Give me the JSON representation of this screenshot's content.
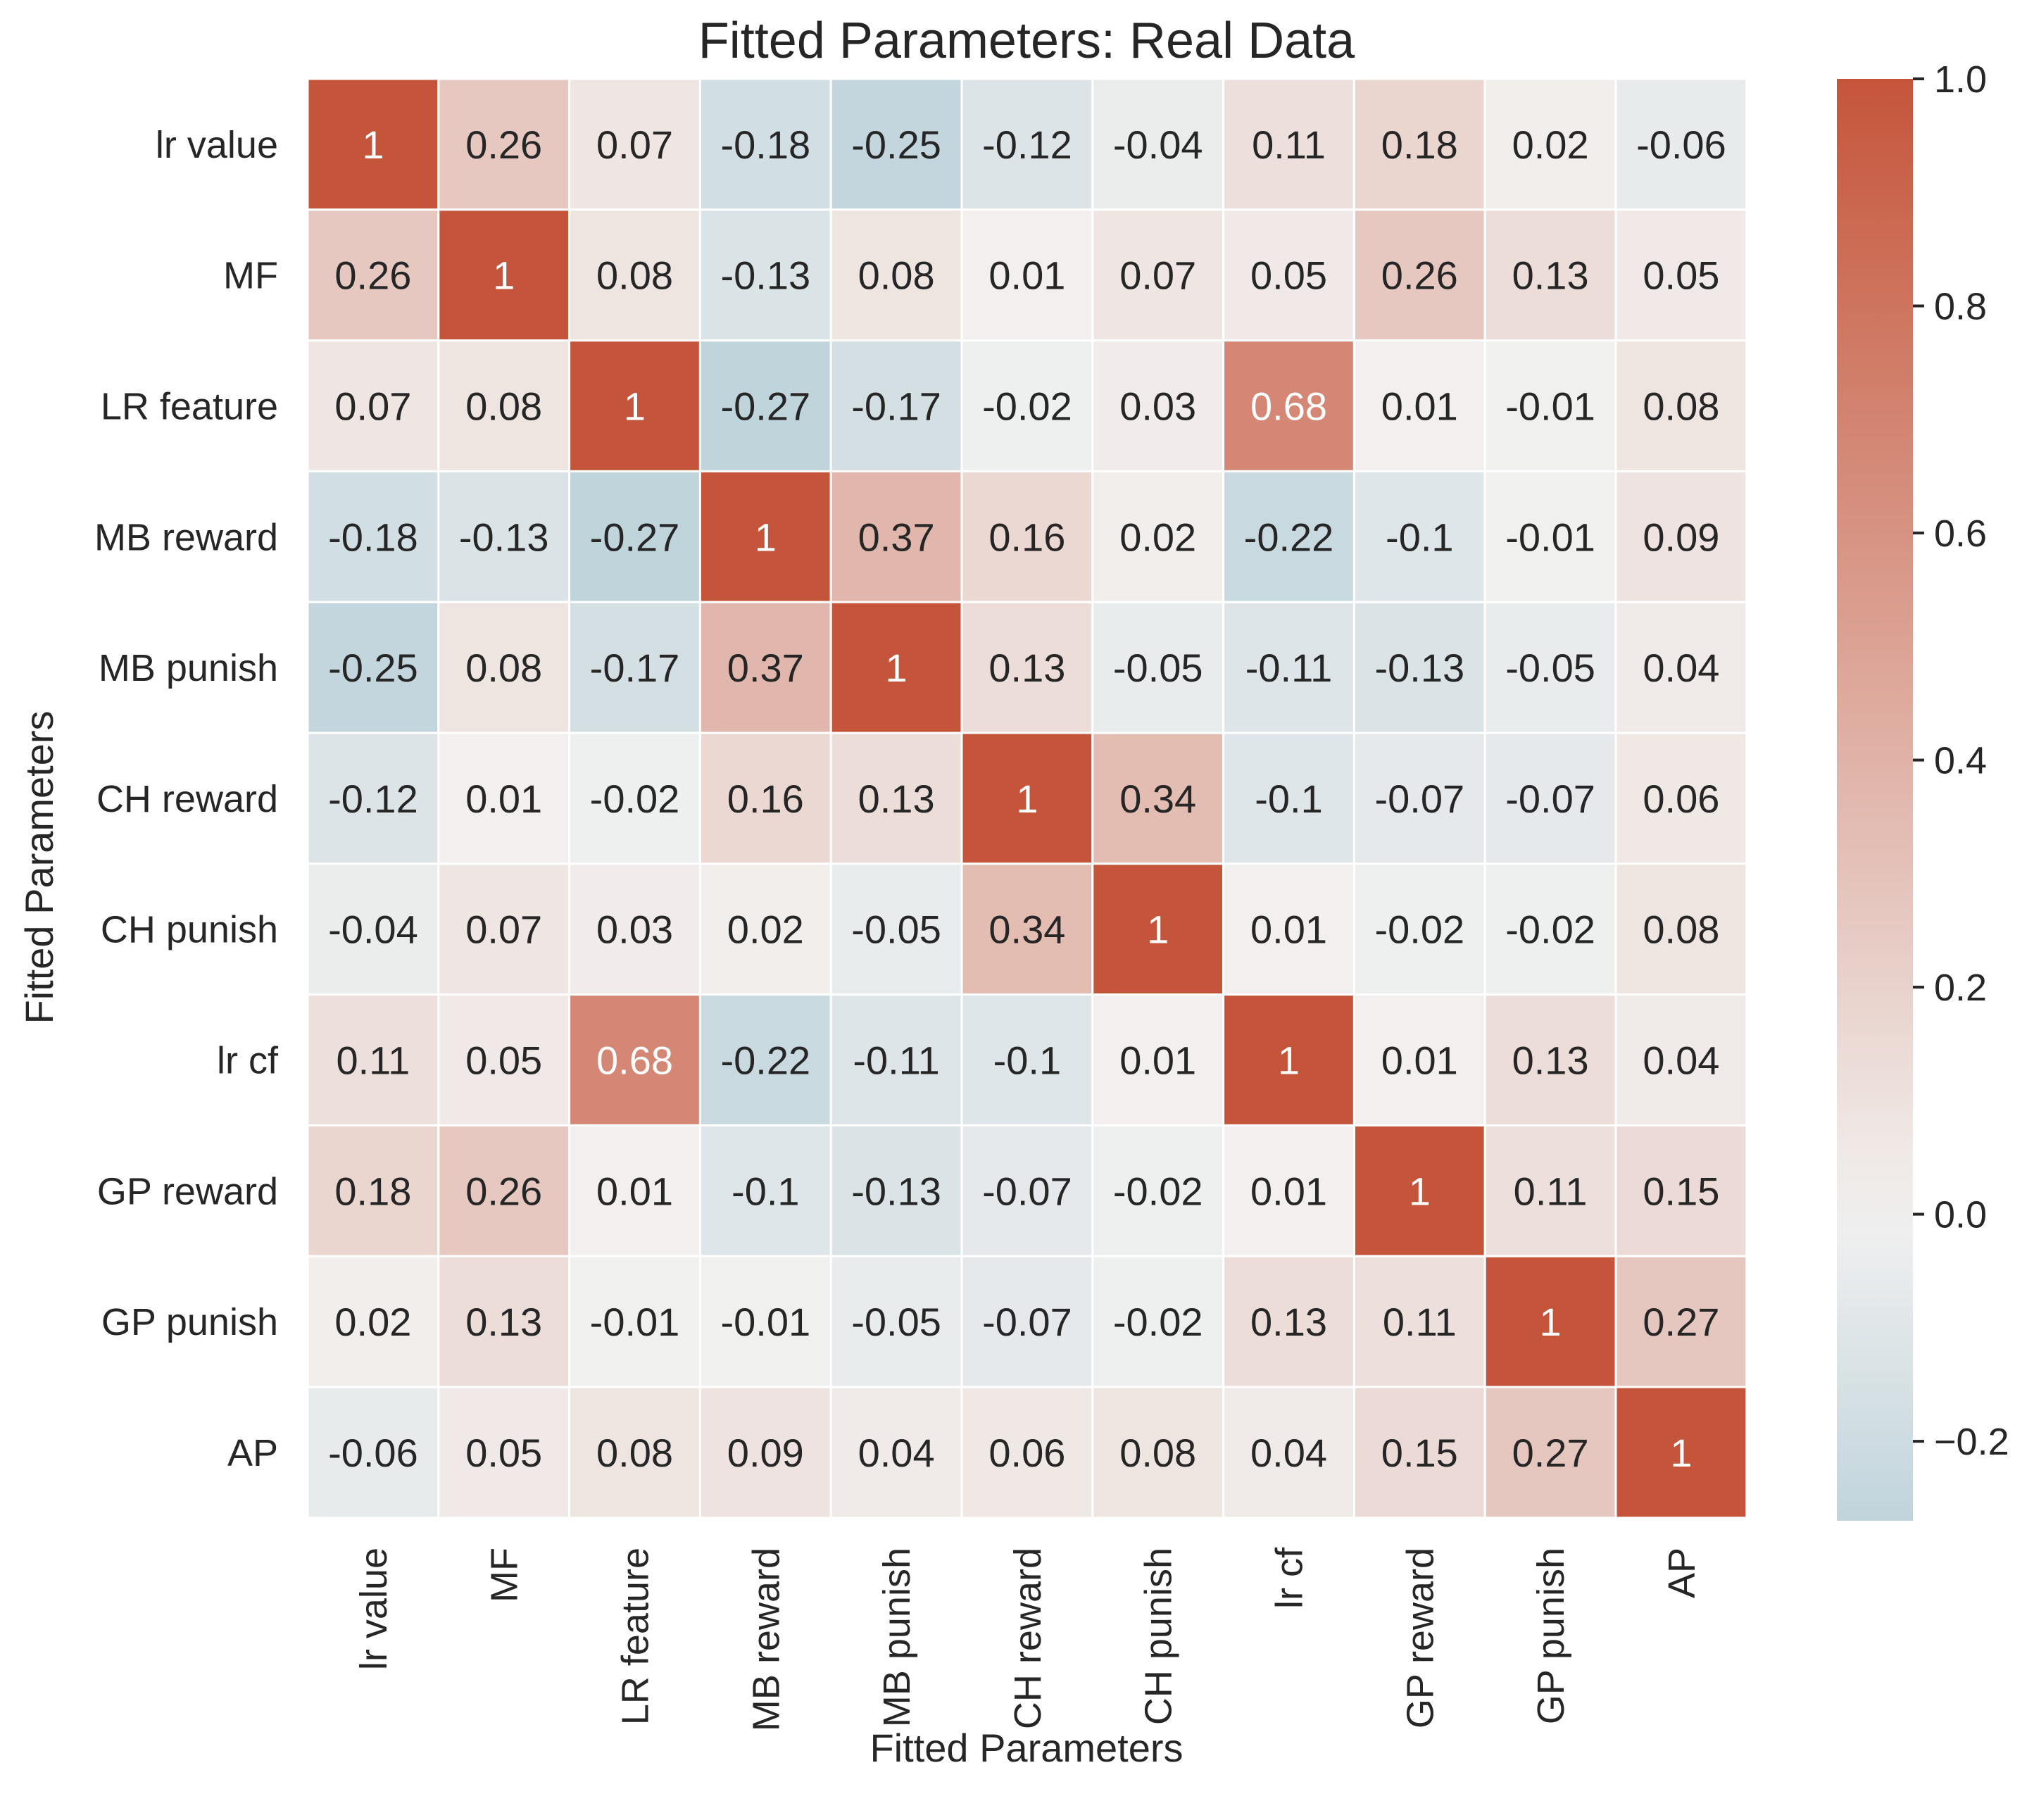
{
  "chart_data": {
    "type": "heatmap",
    "title": "Fitted Parameters: Real Data",
    "xlabel": "Fitted Parameters",
    "ylabel": "Fitted Parameters",
    "row_labels": [
      "lr value",
      "MF",
      "LR feature",
      "MB reward",
      "MB punish",
      "CH reward",
      "CH punish",
      "lr cf",
      "GP reward",
      "GP punish",
      "AP"
    ],
    "col_labels": [
      "lr value",
      "MF",
      "LR feature",
      "MB reward",
      "MB punish",
      "CH reward",
      "CH punish",
      "lr cf",
      "GP reward",
      "GP punish",
      "AP"
    ],
    "values": [
      [
        1,
        0.26,
        0.07,
        -0.18,
        -0.25,
        -0.12,
        -0.04,
        0.11,
        0.18,
        0.02,
        -0.06
      ],
      [
        0.26,
        1,
        0.08,
        -0.13,
        0.08,
        0.01,
        0.07,
        0.05,
        0.26,
        0.13,
        0.05
      ],
      [
        0.07,
        0.08,
        1,
        -0.27,
        -0.17,
        -0.02,
        0.03,
        0.68,
        0.01,
        -0.01,
        0.08
      ],
      [
        -0.18,
        -0.13,
        -0.27,
        1,
        0.37,
        0.16,
        0.02,
        -0.22,
        -0.1,
        -0.01,
        0.09
      ],
      [
        -0.25,
        0.08,
        -0.17,
        0.37,
        1,
        0.13,
        -0.05,
        -0.11,
        -0.13,
        -0.05,
        0.04
      ],
      [
        -0.12,
        0.01,
        -0.02,
        0.16,
        0.13,
        1,
        0.34,
        -0.1,
        -0.07,
        -0.07,
        0.06
      ],
      [
        -0.04,
        0.07,
        0.03,
        0.02,
        -0.05,
        0.34,
        1,
        0.01,
        -0.02,
        -0.02,
        0.08
      ],
      [
        0.11,
        0.05,
        0.68,
        -0.22,
        -0.11,
        -0.1,
        0.01,
        1,
        0.01,
        0.13,
        0.04
      ],
      [
        0.18,
        0.26,
        0.01,
        -0.1,
        -0.13,
        -0.07,
        -0.02,
        0.01,
        1,
        0.11,
        0.15
      ],
      [
        0.02,
        0.13,
        -0.01,
        -0.01,
        -0.05,
        -0.07,
        -0.02,
        0.13,
        0.11,
        1,
        0.27
      ],
      [
        -0.06,
        0.05,
        0.08,
        0.09,
        0.04,
        0.06,
        0.08,
        0.04,
        0.15,
        0.27,
        1
      ]
    ],
    "colorbar": {
      "range": [
        -0.27,
        1.0
      ],
      "ticks": [
        -0.2,
        0.0,
        0.2,
        0.4,
        0.6,
        0.8,
        1.0
      ],
      "tick_labels": [
        "−0.2",
        "0.0",
        "0.2",
        "0.4",
        "0.6",
        "0.8",
        "1.0"
      ]
    },
    "colors": {
      "negative": "#c0d4dc",
      "center": "#f2f1f0",
      "positive": "#c5553a"
    }
  }
}
